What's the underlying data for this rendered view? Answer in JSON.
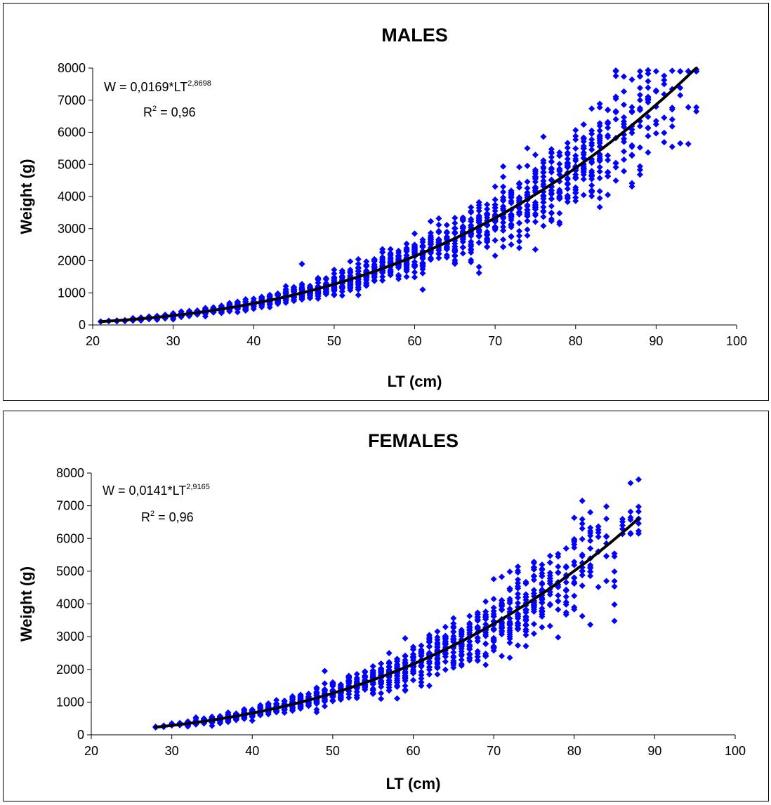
{
  "chart_data": [
    {
      "type": "scatter",
      "title": "MALES",
      "xlabel": "LT (cm)",
      "ylabel": "Weight (g)",
      "xlim": [
        20,
        100
      ],
      "ylim": [
        0,
        8000
      ],
      "xticks": [
        "20",
        "30",
        "40",
        "50",
        "60",
        "70",
        "80",
        "90",
        "100"
      ],
      "yticks": [
        "0",
        "1000",
        "2000",
        "3000",
        "4000",
        "5000",
        "6000",
        "7000",
        "8000"
      ],
      "equation": {
        "base": "W = 0,0169*LT",
        "exponent": "2,8698",
        "r2_label": "R",
        "r2_exp": "2",
        "r2_value": " = 0,96"
      },
      "fit": {
        "a": 0.0169,
        "b": 2.8698,
        "x_range": [
          21,
          96
        ]
      },
      "marker_color": "#0000ff",
      "line_color": "#000000",
      "grid": false,
      "points_x_range": [
        21,
        95
      ],
      "outliers": [
        [
          46,
          1900
        ],
        [
          61,
          1100
        ],
        [
          68,
          1620
        ],
        [
          73,
          2400
        ],
        [
          75,
          2350
        ],
        [
          78,
          3200
        ],
        [
          84,
          4050
        ],
        [
          88,
          6700
        ],
        [
          90,
          6250
        ],
        [
          91,
          7500
        ],
        [
          92,
          6400
        ],
        [
          95,
          6650
        ]
      ]
    },
    {
      "type": "scatter",
      "title": "FEMALES",
      "xlabel": "LT (cm)",
      "ylabel": "Weight (g)",
      "xlim": [
        20,
        100
      ],
      "ylim": [
        0,
        8000
      ],
      "xticks": [
        "20",
        "30",
        "40",
        "50",
        "60",
        "70",
        "80",
        "90",
        "100"
      ],
      "yticks": [
        "0",
        "1000",
        "2000",
        "3000",
        "4000",
        "5000",
        "6000",
        "7000",
        "8000"
      ],
      "equation": {
        "base": "W = 0,0141*LT",
        "exponent": "2,9165",
        "r2_label": "R",
        "r2_exp": "2",
        "r2_value": " = 0,96"
      },
      "fit": {
        "a": 0.0141,
        "b": 2.9165,
        "x_range": [
          28,
          88
        ]
      },
      "marker_color": "#0000ff",
      "line_color": "#000000",
      "grid": false,
      "points_x_range": [
        28,
        88
      ],
      "outliers": [
        [
          49,
          1950
        ],
        [
          56,
          1100
        ],
        [
          62,
          1500
        ],
        [
          69,
          2400
        ],
        [
          74,
          3050
        ],
        [
          80,
          3900
        ],
        [
          82,
          6800
        ],
        [
          83,
          6050
        ],
        [
          84,
          6600
        ],
        [
          84,
          4700
        ],
        [
          85,
          5450
        ],
        [
          88,
          6150
        ]
      ]
    }
  ]
}
